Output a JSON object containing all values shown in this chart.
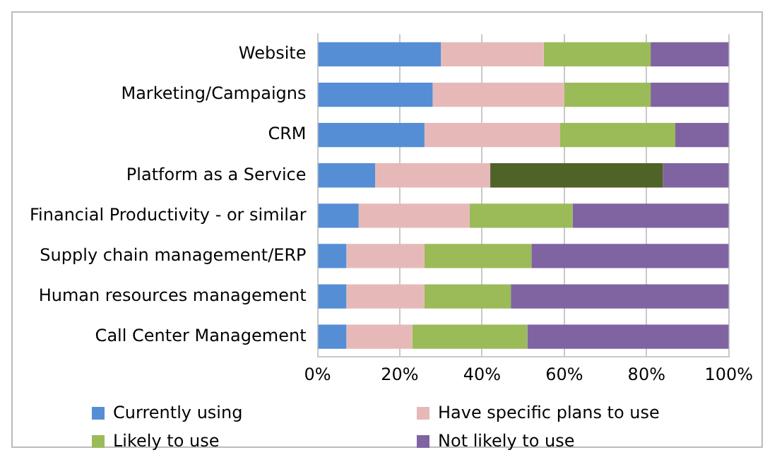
{
  "chart_data": {
    "type": "bar",
    "orientation": "horizontal",
    "stacked": true,
    "categories": [
      "Website",
      "Marketing/Campaigns",
      "CRM",
      "Platform as a Service",
      "Financial Productivity - or similar",
      "Supply chain management/ERP",
      "Human resources management",
      "Call Center Management"
    ],
    "series": [
      {
        "name": "Currently using",
        "color": "#558ed5",
        "values": [
          30,
          28,
          26,
          14,
          10,
          7,
          7,
          7
        ]
      },
      {
        "name": "Have specific plans to use",
        "color": "#e6b9b8",
        "values": [
          25,
          32,
          33,
          28,
          27,
          19,
          19,
          16
        ]
      },
      {
        "name": "Likely to use",
        "color": "#9bbb59",
        "colors": [
          "#9bbb59",
          "#9bbb59",
          "#9bbb59",
          "#4f6228",
          "#9bbb59",
          "#9bbb59",
          "#9bbb59",
          "#9bbb59"
        ],
        "values": [
          26,
          21,
          28,
          42,
          25,
          26,
          21,
          28
        ]
      },
      {
        "name": "Not likely to use",
        "color": "#8064a2",
        "values": [
          19,
          19,
          13,
          16,
          38,
          48,
          53,
          49
        ]
      }
    ],
    "xlim": [
      0,
      100
    ],
    "xticks": [
      {
        "value": 0,
        "label": "0%"
      },
      {
        "value": 20,
        "label": "20%"
      },
      {
        "value": 40,
        "label": "40%"
      },
      {
        "value": 60,
        "label": "60%"
      },
      {
        "value": 80,
        "label": "80%"
      },
      {
        "value": 100,
        "label": "100%"
      }
    ],
    "grid": "x",
    "legend": "bottom"
  }
}
